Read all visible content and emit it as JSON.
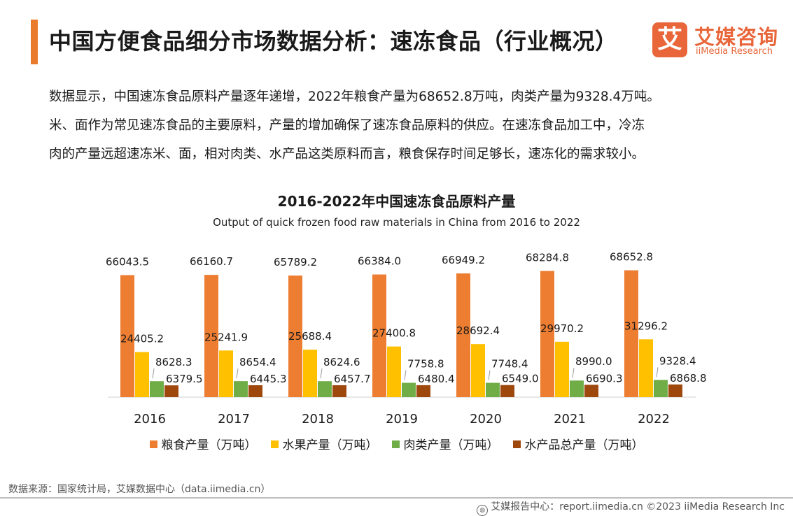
{
  "header": {
    "title": "中国方便食品细分市场数据分析：速冻食品（行业概况）",
    "logo_cn": "艾媒咨询",
    "logo_en": "iiMedia Research",
    "logo_mark": "艾"
  },
  "intro": {
    "line1": "数据显示，中国速冻食品原料产量逐年递增，2022年粮食产量为68652.8万吨，肉类产量为9328.4万吨。",
    "line2": "米、面作为常见速冻食品的主要原料，产量的增加确保了速冻食品原料的供应。在速冻食品加工中，冷冻",
    "line3": "肉的产量远超速冻米、面，相对肉类、水产品这类原料而言，粮食保存时间足够长，速冻化的需求较小。"
  },
  "chart_data": {
    "type": "bar",
    "title": "2016-2022年中国速冻食品原料产量",
    "subtitle": "Output of quick frozen food raw materials in China from 2016 to 2022",
    "categories": [
      "2016",
      "2017",
      "2018",
      "2019",
      "2020",
      "2021",
      "2022"
    ],
    "series": [
      {
        "name": "粮食产量（万吨）",
        "color": "#ed7d31",
        "values": [
          66043.5,
          66160.7,
          65789.2,
          66384.0,
          66949.2,
          68284.8,
          68652.8
        ]
      },
      {
        "name": "水果产量（万吨）",
        "color": "#ffc000",
        "values": [
          24405.2,
          25241.9,
          25688.4,
          27400.8,
          28692.4,
          29970.2,
          31296.2
        ]
      },
      {
        "name": "肉类产量（万吨）",
        "color": "#70ad47",
        "values": [
          8628.3,
          8654.4,
          8624.6,
          7758.8,
          7748.4,
          8990.0,
          9328.4
        ]
      },
      {
        "name": "水产品总产量（万吨）",
        "color": "#9e480e",
        "values": [
          6379.5,
          6445.3,
          6457.7,
          6480.4,
          6549.0,
          6690.3,
          6868.8
        ]
      }
    ],
    "ylim": [
      0,
      70000
    ],
    "grid": false,
    "legend_position": "bottom"
  },
  "source": "数据来源：国家统计局，艾媒数据中心（data.iimedia.cn）",
  "footer": {
    "text": "艾媒报告中心：report.iimedia.cn  ©2023  iiMedia Research  Inc",
    "icon": "globe-icon"
  }
}
